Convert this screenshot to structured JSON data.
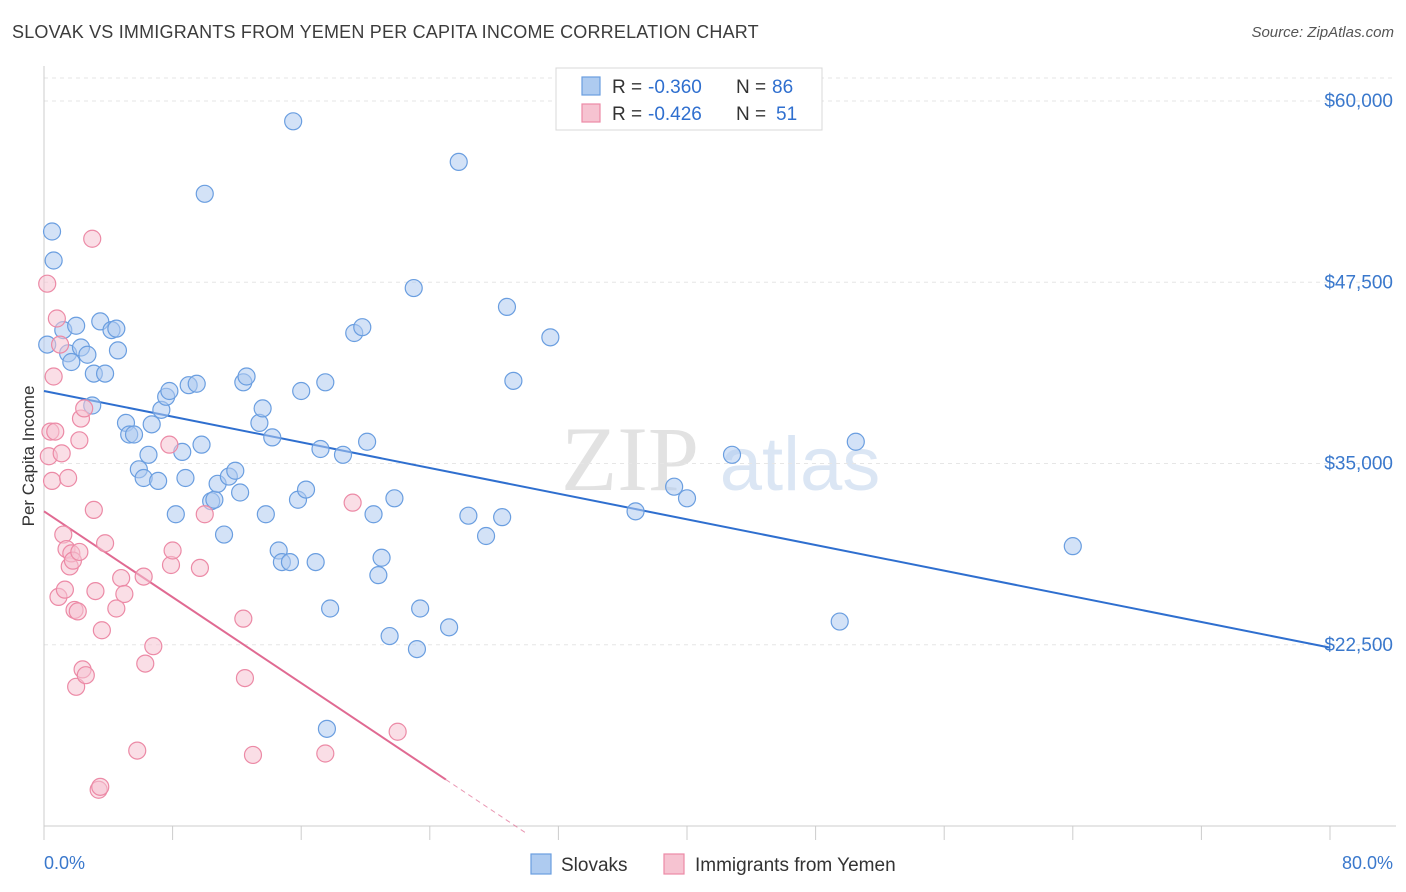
{
  "chart_data": {
    "type": "scatter",
    "title": "SLOVAK VS IMMIGRANTS FROM YEMEN PER CAPITA INCOME CORRELATION CHART",
    "source": "Source: ZipAtlas.com",
    "ylabel": "Per Capita Income",
    "xlim": [
      0,
      80
    ],
    "ylim": [
      10000,
      62000
    ],
    "x_tick_labels": [
      {
        "value": 0,
        "label": "0.0%"
      },
      {
        "value": 80,
        "label": "80.0%"
      }
    ],
    "y_ticks": [
      {
        "value": 60000,
        "label": "$60,000"
      },
      {
        "value": 47500,
        "label": "$47,500"
      },
      {
        "value": 35000,
        "label": "$35,000"
      },
      {
        "value": 22500,
        "label": "$22,500"
      }
    ],
    "grid": true,
    "watermark": {
      "zip": "ZIP",
      "atlas": "atlas"
    },
    "legend_stats": [
      {
        "r_label": "R = ",
        "r_value": "-0.360",
        "n_label": "N = ",
        "n_value": "86"
      },
      {
        "r_label": "R = ",
        "r_value": "-0.426",
        "n_label": "N = ",
        "n_value": "51"
      }
    ],
    "series": [
      {
        "name": "Slovaks",
        "color": "#6a9ee0",
        "fill": "#aecbf0",
        "line_color": "#2f6fcf",
        "trend": {
          "x0": 0,
          "y0": 40000,
          "x1": 80,
          "y1": 22300
        },
        "points": [
          [
            0.2,
            43200
          ],
          [
            0.5,
            51000
          ],
          [
            0.6,
            49000
          ],
          [
            1.2,
            44200
          ],
          [
            1.5,
            42600
          ],
          [
            1.7,
            42000
          ],
          [
            2.0,
            44500
          ],
          [
            2.3,
            43000
          ],
          [
            2.7,
            42500
          ],
          [
            3.0,
            39000
          ],
          [
            3.1,
            41200
          ],
          [
            3.5,
            44800
          ],
          [
            3.8,
            41200
          ],
          [
            4.2,
            44200
          ],
          [
            4.5,
            44300
          ],
          [
            4.6,
            42800
          ],
          [
            5.1,
            37800
          ],
          [
            5.3,
            37000
          ],
          [
            5.6,
            37000
          ],
          [
            5.9,
            34600
          ],
          [
            6.2,
            34000
          ],
          [
            6.5,
            35600
          ],
          [
            6.7,
            37700
          ],
          [
            7.1,
            33800
          ],
          [
            7.3,
            38700
          ],
          [
            7.6,
            39600
          ],
          [
            7.8,
            40000
          ],
          [
            8.2,
            31500
          ],
          [
            8.6,
            35800
          ],
          [
            8.8,
            34000
          ],
          [
            9.0,
            40400
          ],
          [
            9.5,
            40500
          ],
          [
            9.8,
            36300
          ],
          [
            10.0,
            53600
          ],
          [
            10.4,
            32400
          ],
          [
            10.6,
            32500
          ],
          [
            10.8,
            33600
          ],
          [
            11.2,
            30100
          ],
          [
            11.5,
            34100
          ],
          [
            11.9,
            34500
          ],
          [
            12.2,
            33000
          ],
          [
            12.4,
            40600
          ],
          [
            12.6,
            41000
          ],
          [
            13.4,
            37800
          ],
          [
            13.6,
            38800
          ],
          [
            13.8,
            31500
          ],
          [
            14.2,
            36800
          ],
          [
            14.6,
            29000
          ],
          [
            14.8,
            28200
          ],
          [
            15.3,
            28200
          ],
          [
            15.5,
            58600
          ],
          [
            15.8,
            32500
          ],
          [
            16.0,
            40000
          ],
          [
            16.3,
            33200
          ],
          [
            16.9,
            28200
          ],
          [
            17.2,
            36000
          ],
          [
            17.5,
            40600
          ],
          [
            17.8,
            25000
          ],
          [
            18.6,
            35600
          ],
          [
            19.3,
            44000
          ],
          [
            19.8,
            44400
          ],
          [
            20.1,
            36500
          ],
          [
            20.5,
            31500
          ],
          [
            20.8,
            27300
          ],
          [
            21.0,
            28500
          ],
          [
            21.5,
            23100
          ],
          [
            21.8,
            32600
          ],
          [
            23.0,
            47100
          ],
          [
            23.2,
            22200
          ],
          [
            23.4,
            25000
          ],
          [
            25.2,
            23700
          ],
          [
            25.8,
            55800
          ],
          [
            26.4,
            31400
          ],
          [
            27.5,
            30000
          ],
          [
            28.5,
            31300
          ],
          [
            28.8,
            45800
          ],
          [
            29.2,
            40700
          ],
          [
            31.5,
            43700
          ],
          [
            36.8,
            31700
          ],
          [
            39.2,
            33400
          ],
          [
            40.0,
            32600
          ],
          [
            42.8,
            35600
          ],
          [
            49.5,
            24100
          ],
          [
            50.5,
            36500
          ],
          [
            64.0,
            29300
          ],
          [
            17.6,
            16700
          ]
        ]
      },
      {
        "name": "Immigrants from Yemen",
        "color": "#ec8aa6",
        "fill": "#f6c3d1",
        "line_color": "#e06a92",
        "trend": {
          "x0": 0,
          "y0": 31700,
          "x1": 25,
          "y1": 13200,
          "dash_x1": 30
        },
        "points": [
          [
            0.2,
            47400
          ],
          [
            0.3,
            35500
          ],
          [
            0.4,
            37200
          ],
          [
            0.5,
            33800
          ],
          [
            0.6,
            41000
          ],
          [
            0.7,
            37200
          ],
          [
            0.8,
            45000
          ],
          [
            0.9,
            25800
          ],
          [
            1.0,
            43200
          ],
          [
            1.1,
            35700
          ],
          [
            1.2,
            30100
          ],
          [
            1.3,
            26300
          ],
          [
            1.4,
            29100
          ],
          [
            1.5,
            34000
          ],
          [
            1.6,
            27900
          ],
          [
            1.7,
            28800
          ],
          [
            1.8,
            28300
          ],
          [
            1.9,
            24900
          ],
          [
            2.0,
            19600
          ],
          [
            2.1,
            24800
          ],
          [
            2.2,
            28900
          ],
          [
            2.3,
            38100
          ],
          [
            2.4,
            20800
          ],
          [
            2.5,
            38800
          ],
          [
            2.6,
            20400
          ],
          [
            3.0,
            50500
          ],
          [
            3.1,
            31800
          ],
          [
            3.2,
            26200
          ],
          [
            3.4,
            12500
          ],
          [
            3.5,
            12700
          ],
          [
            3.6,
            23500
          ],
          [
            3.8,
            29500
          ],
          [
            4.5,
            25000
          ],
          [
            4.8,
            27100
          ],
          [
            5.0,
            26000
          ],
          [
            5.8,
            15200
          ],
          [
            6.2,
            27200
          ],
          [
            6.3,
            21200
          ],
          [
            6.8,
            22400
          ],
          [
            7.8,
            36300
          ],
          [
            7.9,
            28000
          ],
          [
            8.0,
            29000
          ],
          [
            9.7,
            27800
          ],
          [
            10.0,
            31500
          ],
          [
            12.4,
            24300
          ],
          [
            12.5,
            20200
          ],
          [
            13.0,
            14900
          ],
          [
            17.5,
            15000
          ],
          [
            19.2,
            32300
          ],
          [
            22.0,
            16500
          ],
          [
            2.2,
            36600
          ]
        ]
      }
    ]
  }
}
